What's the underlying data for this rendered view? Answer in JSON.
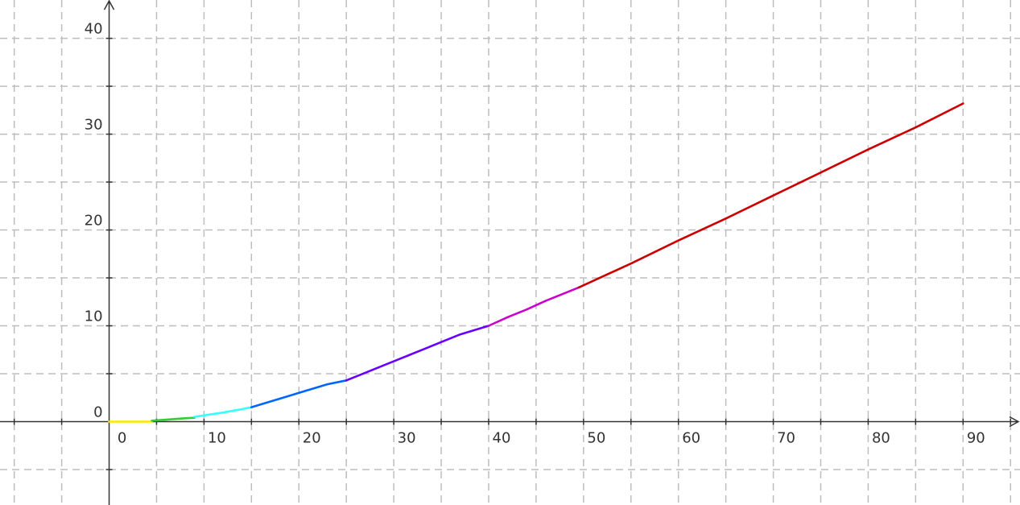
{
  "chart_data": {
    "type": "line",
    "title": "",
    "xlabel": "",
    "ylabel": "",
    "xlim": [
      -11.5,
      96
    ],
    "ylim": [
      -8.7,
      44
    ],
    "grid": true,
    "x_grid_step": 5,
    "y_grid_step": 5,
    "x_ticks": [
      0,
      10,
      20,
      30,
      40,
      50,
      60,
      70,
      80,
      90
    ],
    "y_ticks": [
      0,
      10,
      20,
      30,
      40
    ],
    "x_tick_labels": [
      "0",
      "10",
      "20",
      "30",
      "40",
      "50",
      "60",
      "70",
      "80",
      "90"
    ],
    "y_tick_labels": [
      "0",
      "10",
      "20",
      "30",
      "40"
    ],
    "series": [
      {
        "color": "#ffe600",
        "points": [
          [
            0,
            0
          ],
          [
            4.5,
            0
          ]
        ]
      },
      {
        "color": "#33cc33",
        "points": [
          [
            4.5,
            0.1
          ],
          [
            6,
            0.2
          ],
          [
            8,
            0.35
          ],
          [
            9,
            0.4
          ]
        ]
      },
      {
        "color": "#33ffff",
        "points": [
          [
            9,
            0.5
          ],
          [
            10,
            0.65
          ],
          [
            12,
            0.95
          ],
          [
            14,
            1.3
          ],
          [
            15,
            1.5
          ]
        ]
      },
      {
        "color": "#0066ff",
        "points": [
          [
            15,
            1.5
          ],
          [
            17,
            2.1
          ],
          [
            19,
            2.7
          ],
          [
            21,
            3.3
          ],
          [
            23,
            3.9
          ],
          [
            25,
            4.3
          ]
        ]
      },
      {
        "color": "#6600ff",
        "points": [
          [
            25,
            4.3
          ],
          [
            27,
            5.1
          ],
          [
            29,
            5.9
          ],
          [
            31,
            6.7
          ],
          [
            33,
            7.5
          ],
          [
            35,
            8.3
          ],
          [
            37,
            9.1
          ],
          [
            40,
            10
          ]
        ]
      },
      {
        "color": "#cc00cc",
        "points": [
          [
            40,
            10
          ],
          [
            42,
            10.9
          ],
          [
            44,
            11.7
          ],
          [
            46,
            12.6
          ],
          [
            48,
            13.4
          ],
          [
            49.5,
            14
          ]
        ]
      },
      {
        "color": "#cc0000",
        "points": [
          [
            49.5,
            14
          ],
          [
            55,
            16.5
          ],
          [
            60,
            18.9
          ],
          [
            65,
            21.2
          ],
          [
            70,
            23.6
          ],
          [
            75,
            26
          ],
          [
            80,
            28.4
          ],
          [
            85,
            30.7
          ],
          [
            90,
            33.2
          ]
        ]
      }
    ]
  }
}
